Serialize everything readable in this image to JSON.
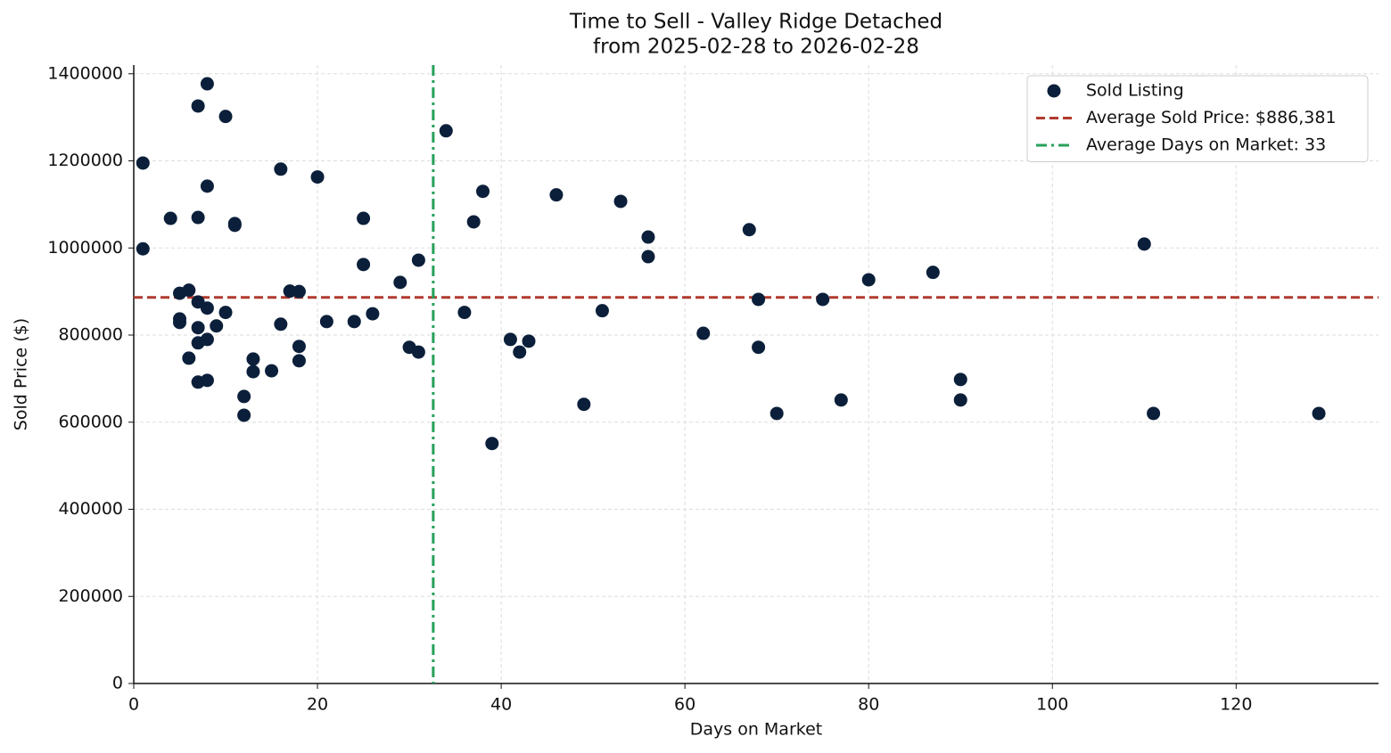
{
  "chart_data": {
    "type": "scatter",
    "title": "Time to Sell - Valley Ridge Detached",
    "subtitle": "from 2025-02-28 to 2026-02-28",
    "x_label": "Days on Market",
    "y_label": "Sold Price ($)",
    "xlim": [
      0,
      135.5
    ],
    "ylim": [
      0,
      1420000
    ],
    "xticks": [
      0,
      20,
      40,
      60,
      80,
      100,
      120
    ],
    "yticks": [
      0,
      200000,
      400000,
      600000,
      800000,
      1000000,
      1200000,
      1400000
    ],
    "grid": true,
    "legend": "upper right",
    "series": [
      {
        "name": "Sold Listing",
        "color": "#0b1f3a",
        "x": [
          1,
          1,
          4,
          5,
          5,
          5,
          6,
          6,
          7,
          7,
          7,
          7,
          7,
          7,
          8,
          8,
          8,
          8,
          8,
          9,
          10,
          10,
          11,
          11,
          12,
          12,
          13,
          13,
          15,
          16,
          16,
          17,
          18,
          18,
          18,
          20,
          21,
          24,
          25,
          25,
          26,
          29,
          30,
          31,
          31,
          34,
          36,
          37,
          38,
          39,
          41,
          42,
          43,
          46,
          49,
          51,
          53,
          56,
          56,
          62,
          67,
          68,
          68,
          70,
          75,
          77,
          80,
          87,
          90,
          90,
          110,
          111,
          129
        ],
        "values": [
          1195000,
          998000,
          1068000,
          896000,
          837000,
          829000,
          903000,
          747000,
          1326000,
          1070000,
          876000,
          817000,
          782000,
          692000,
          1377000,
          1142000,
          862000,
          790000,
          696000,
          821000,
          1302000,
          852000,
          1056000,
          1052000,
          659000,
          616000,
          745000,
          716000,
          718000,
          1181000,
          825000,
          901000,
          900000,
          774000,
          741000,
          1163000,
          831000,
          831000,
          1068000,
          962000,
          849000,
          921000,
          772000,
          761000,
          972000,
          1269000,
          852000,
          1060000,
          1130000,
          551000,
          790000,
          761000,
          786000,
          1122000,
          641000,
          856000,
          1107000,
          1025000,
          980000,
          804000,
          1042000,
          882000,
          772000,
          620000,
          882000,
          651000,
          927000,
          944000,
          698000,
          651000,
          1009000,
          620000,
          620000
        ]
      }
    ],
    "reference_lines": [
      {
        "name": "Average Sold Price: $886,381",
        "axis": "y",
        "value": 886381,
        "color": "#b03a2e",
        "style": "dashed"
      },
      {
        "name": "Average Days on Market: 33",
        "axis": "x",
        "value": 32.6,
        "color": "#27a05a",
        "style": "dashdot"
      }
    ]
  }
}
